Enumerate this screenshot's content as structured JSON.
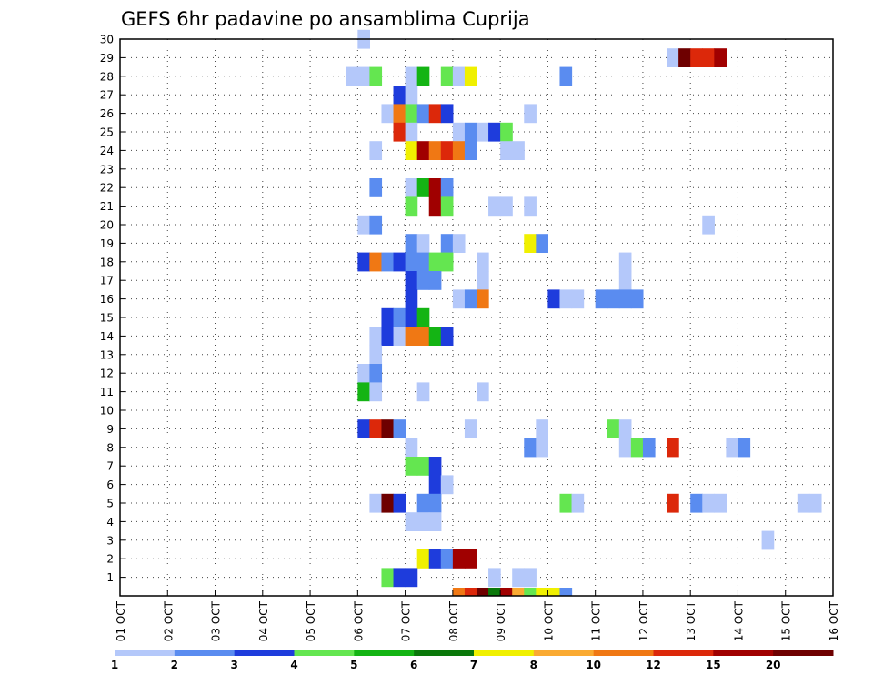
{
  "chart_data": {
    "type": "heatmap",
    "title": "GEFS 6hr padavine po ansamblima Cuprija",
    "xlabel": "",
    "ylabel": "",
    "x_tick_labels": [
      "01 OCT",
      "02 OCT",
      "03 OCT",
      "04 OCT",
      "05 OCT",
      "06 OCT",
      "07 OCT",
      "08 OCT",
      "09 OCT",
      "10 OCT",
      "11 OCT",
      "12 OCT",
      "13 OCT",
      "14 OCT",
      "15 OCT",
      "16 OCT"
    ],
    "y_tick_labels": [
      "1",
      "2",
      "3",
      "4",
      "5",
      "6",
      "7",
      "8",
      "9",
      "10",
      "11",
      "12",
      "13",
      "14",
      "15",
      "16",
      "17",
      "18",
      "19",
      "20",
      "21",
      "22",
      "23",
      "24",
      "25",
      "26",
      "27",
      "28",
      "29",
      "30"
    ],
    "x_unit": "day of October (fractional, 6-hour steps)",
    "xlim": [
      1,
      16
    ],
    "ylim": [
      0,
      30
    ],
    "grid": true,
    "colorbar": {
      "labels": [
        "1",
        "2",
        "3",
        "4",
        "5",
        "6",
        "7",
        "8",
        "10",
        "12",
        "15",
        "20"
      ],
      "colors": [
        "#b4c8fa",
        "#5a8cf0",
        "#1e3cdc",
        "#64e650",
        "#14b414",
        "#0a780a",
        "#f0f000",
        "#faaa32",
        "#f07814",
        "#dc280a",
        "#a00000",
        "#6e0000"
      ]
    },
    "cells": [
      [
        "30",
        6.0,
        0
      ],
      [
        "29",
        12.5,
        0
      ],
      [
        "29",
        12.75,
        11
      ],
      [
        "29",
        13.0,
        9
      ],
      [
        "29",
        13.25,
        9
      ],
      [
        "29",
        13.5,
        10
      ],
      [
        "28",
        5.75,
        0
      ],
      [
        "28",
        6.0,
        0
      ],
      [
        "28",
        6.25,
        3
      ],
      [
        "28",
        7.0,
        0
      ],
      [
        "28",
        7.25,
        4
      ],
      [
        "28",
        7.75,
        3
      ],
      [
        "28",
        8.0,
        0
      ],
      [
        "28",
        8.25,
        6
      ],
      [
        "28",
        10.25,
        1
      ],
      [
        "27",
        6.75,
        2
      ],
      [
        "27",
        7.0,
        0
      ],
      [
        "26",
        6.5,
        0
      ],
      [
        "26",
        6.75,
        8
      ],
      [
        "26",
        7.0,
        3
      ],
      [
        "26",
        7.25,
        1
      ],
      [
        "26",
        7.5,
        9
      ],
      [
        "26",
        7.75,
        2
      ],
      [
        "26",
        9.5,
        0
      ],
      [
        "25",
        6.75,
        9
      ],
      [
        "25",
        7.0,
        0
      ],
      [
        "25",
        8.0,
        0
      ],
      [
        "25",
        8.25,
        1
      ],
      [
        "25",
        8.5,
        0
      ],
      [
        "25",
        8.75,
        2
      ],
      [
        "25",
        9.0,
        3
      ],
      [
        "24",
        6.25,
        0
      ],
      [
        "24",
        7.0,
        6
      ],
      [
        "24",
        7.25,
        10
      ],
      [
        "24",
        7.5,
        8
      ],
      [
        "24",
        7.75,
        9
      ],
      [
        "24",
        8.0,
        8
      ],
      [
        "24",
        8.25,
        1
      ],
      [
        "24",
        9.0,
        0
      ],
      [
        "24",
        9.25,
        0
      ],
      [
        "22",
        6.25,
        1
      ],
      [
        "22",
        7.0,
        0
      ],
      [
        "22",
        7.25,
        4
      ],
      [
        "22",
        7.5,
        10
      ],
      [
        "22",
        7.75,
        1
      ],
      [
        "21",
        7.0,
        3
      ],
      [
        "21",
        7.5,
        10
      ],
      [
        "21",
        7.75,
        3
      ],
      [
        "21",
        8.75,
        0
      ],
      [
        "21",
        9.0,
        0
      ],
      [
        "21",
        9.5,
        0
      ],
      [
        "20",
        6.0,
        0
      ],
      [
        "20",
        6.25,
        1
      ],
      [
        "20",
        13.25,
        0
      ],
      [
        "19",
        7.0,
        1
      ],
      [
        "19",
        7.25,
        0
      ],
      [
        "19",
        7.75,
        1
      ],
      [
        "19",
        8.0,
        0
      ],
      [
        "19",
        9.5,
        6
      ],
      [
        "19",
        9.75,
        1
      ],
      [
        "18",
        6.0,
        2
      ],
      [
        "18",
        6.25,
        8
      ],
      [
        "18",
        6.5,
        1
      ],
      [
        "18",
        6.75,
        2
      ],
      [
        "18",
        7.0,
        1
      ],
      [
        "18",
        7.25,
        1
      ],
      [
        "18",
        7.5,
        3
      ],
      [
        "18",
        7.75,
        3
      ],
      [
        "18",
        8.5,
        0
      ],
      [
        "18",
        11.5,
        0
      ],
      [
        "17",
        7.0,
        2
      ],
      [
        "17",
        7.25,
        1
      ],
      [
        "17",
        7.5,
        1
      ],
      [
        "17",
        8.5,
        0
      ],
      [
        "17",
        11.5,
        0
      ],
      [
        "16",
        7.0,
        2
      ],
      [
        "16",
        8.0,
        0
      ],
      [
        "16",
        8.25,
        1
      ],
      [
        "16",
        8.5,
        8
      ],
      [
        "16",
        10.0,
        2
      ],
      [
        "16",
        10.25,
        0
      ],
      [
        "16",
        10.5,
        0
      ],
      [
        "16",
        11.0,
        1
      ],
      [
        "16",
        11.25,
        1
      ],
      [
        "16",
        11.5,
        1
      ],
      [
        "16",
        11.75,
        1
      ],
      [
        "15",
        6.5,
        2
      ],
      [
        "15",
        6.75,
        1
      ],
      [
        "15",
        7.0,
        2
      ],
      [
        "15",
        7.25,
        4
      ],
      [
        "14",
        6.25,
        0
      ],
      [
        "14",
        6.5,
        2
      ],
      [
        "14",
        6.75,
        0
      ],
      [
        "14",
        7.0,
        8
      ],
      [
        "14",
        7.25,
        8
      ],
      [
        "14",
        7.5,
        4
      ],
      [
        "14",
        7.75,
        2
      ],
      [
        "13",
        6.25,
        0
      ],
      [
        "12",
        6.0,
        0
      ],
      [
        "12",
        6.25,
        1
      ],
      [
        "11",
        6.0,
        4
      ],
      [
        "11",
        6.25,
        0
      ],
      [
        "11",
        7.25,
        0
      ],
      [
        "11",
        8.5,
        0
      ],
      [
        "9",
        6.0,
        2
      ],
      [
        "9",
        6.25,
        9
      ],
      [
        "9",
        6.5,
        11
      ],
      [
        "9",
        6.75,
        1
      ],
      [
        "9",
        8.25,
        0
      ],
      [
        "9",
        9.75,
        0
      ],
      [
        "9",
        11.25,
        3
      ],
      [
        "9",
        11.5,
        0
      ],
      [
        "8",
        7.0,
        0
      ],
      [
        "8",
        9.5,
        1
      ],
      [
        "8",
        9.75,
        0
      ],
      [
        "8",
        11.5,
        0
      ],
      [
        "8",
        11.75,
        3
      ],
      [
        "8",
        12.0,
        1
      ],
      [
        "8",
        12.5,
        9
      ],
      [
        "8",
        13.75,
        0
      ],
      [
        "8",
        14.0,
        1
      ],
      [
        "7",
        7.0,
        3
      ],
      [
        "7",
        7.25,
        3
      ],
      [
        "7",
        7.5,
        2
      ],
      [
        "6",
        7.5,
        2
      ],
      [
        "6",
        7.75,
        0
      ],
      [
        "5",
        6.25,
        0
      ],
      [
        "5",
        6.5,
        11
      ],
      [
        "5",
        6.75,
        2
      ],
      [
        "5",
        7.25,
        1
      ],
      [
        "5",
        7.5,
        1
      ],
      [
        "5",
        10.25,
        3
      ],
      [
        "5",
        10.5,
        0
      ],
      [
        "5",
        12.5,
        9
      ],
      [
        "5",
        13.0,
        1
      ],
      [
        "5",
        13.25,
        0
      ],
      [
        "5",
        13.5,
        0
      ],
      [
        "5",
        15.25,
        0
      ],
      [
        "5",
        15.5,
        0
      ],
      [
        "4",
        7.0,
        0
      ],
      [
        "4",
        7.25,
        0
      ],
      [
        "4",
        7.5,
        0
      ],
      [
        "3",
        14.5,
        0
      ],
      [
        "2",
        7.25,
        6
      ],
      [
        "2",
        7.5,
        2
      ],
      [
        "2",
        7.75,
        1
      ],
      [
        "2",
        8.0,
        10
      ],
      [
        "2",
        8.25,
        10
      ],
      [
        "1",
        6.5,
        3
      ],
      [
        "1",
        6.75,
        2
      ],
      [
        "1",
        7.0,
        2
      ],
      [
        "1",
        8.75,
        0
      ],
      [
        "1",
        9.25,
        0
      ],
      [
        "1",
        9.5,
        0
      ]
    ],
    "bottom_strip": [
      [
        8.0,
        8
      ],
      [
        8.25,
        9
      ],
      [
        8.5,
        11
      ],
      [
        8.75,
        5
      ],
      [
        9.0,
        10
      ],
      [
        9.25,
        7
      ],
      [
        9.5,
        3
      ],
      [
        9.75,
        6
      ],
      [
        10.0,
        6
      ],
      [
        10.25,
        1
      ]
    ]
  }
}
